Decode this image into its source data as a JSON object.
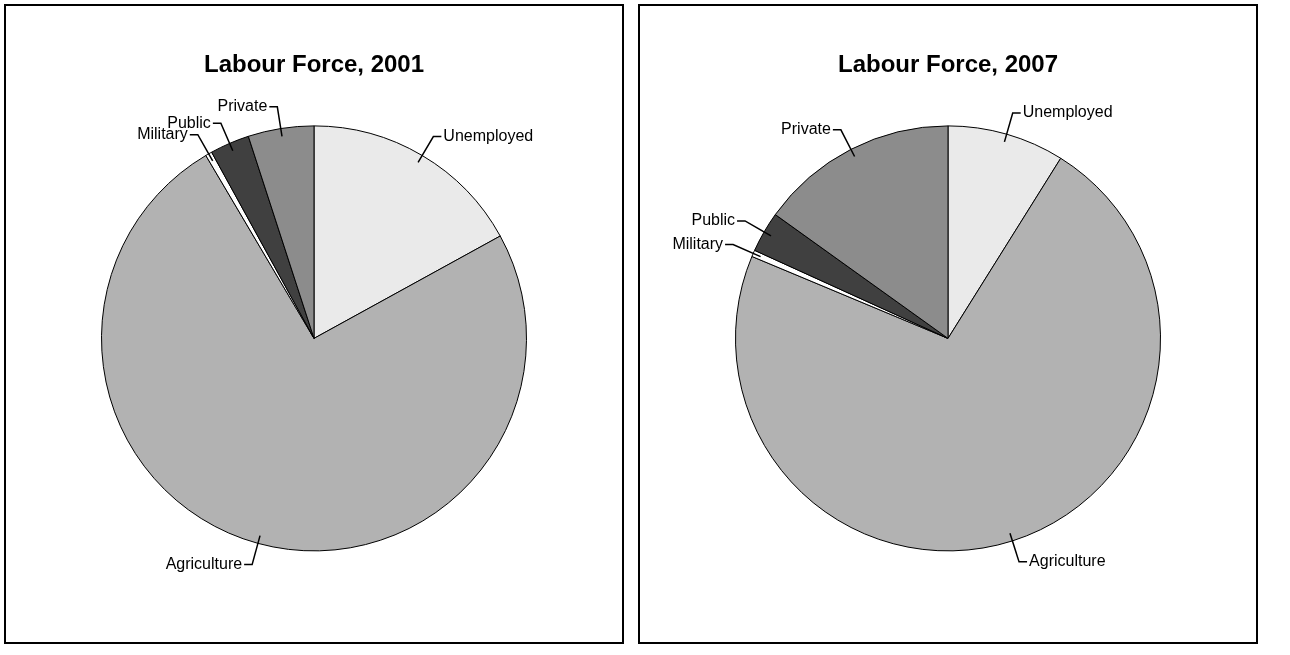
{
  "chart_data": [
    {
      "type": "pie",
      "title": "Labour Force, 2001",
      "categories": [
        "Unemployed",
        "Agriculture",
        "Military",
        "Public",
        "Private"
      ],
      "values": [
        17,
        74.5,
        0.5,
        3,
        5
      ],
      "colors": [
        "#eaeaea",
        "#b2b2b2",
        "#ffffff",
        "#404040",
        "#8c8c8c"
      ],
      "legend": false
    },
    {
      "type": "pie",
      "title": "Labour Force, 2007",
      "categories": [
        "Unemployed",
        "Agriculture",
        "Military",
        "Public",
        "Private"
      ],
      "values": [
        8.9,
        72.4,
        0.5,
        3.1,
        15.1
      ],
      "colors": [
        "#eaeaea",
        "#b2b2b2",
        "#ffffff",
        "#404040",
        "#8c8c8c"
      ],
      "legend": false
    }
  ]
}
